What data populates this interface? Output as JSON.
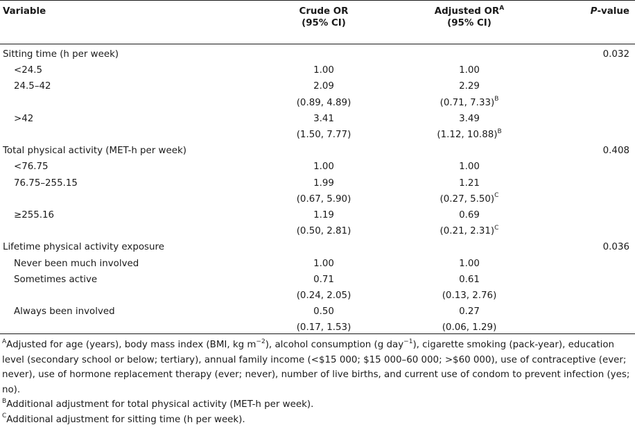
{
  "header": {
    "variable": "Variable",
    "crude_line1": "Crude OR",
    "crude_line2": "(95% CI)",
    "adjusted_line1": "Adjusted OR",
    "adjusted_sup": "A",
    "adjusted_line2": "(95% CI)",
    "pvalue_italic": "P",
    "pvalue_rest": "-value"
  },
  "rows": [
    {
      "label": "Sitting time (h per week)",
      "indent": false,
      "crude": "",
      "adjusted": "",
      "adj_sup": "",
      "p": "0.032"
    },
    {
      "label": "<24.5",
      "indent": true,
      "crude": "1.00",
      "adjusted": "1.00",
      "adj_sup": "",
      "p": ""
    },
    {
      "label": "24.5–42",
      "indent": true,
      "crude": "2.09",
      "adjusted": "2.29",
      "adj_sup": "",
      "p": ""
    },
    {
      "label": "",
      "indent": true,
      "crude": "(0.89, 4.89)",
      "adjusted": "(0.71, 7.33)",
      "adj_sup": "B",
      "p": ""
    },
    {
      "label": ">42",
      "indent": true,
      "crude": "3.41",
      "adjusted": "3.49",
      "adj_sup": "",
      "p": ""
    },
    {
      "label": "",
      "indent": true,
      "crude": "(1.50, 7.77)",
      "adjusted": "(1.12, 10.88)",
      "adj_sup": "B",
      "p": ""
    },
    {
      "label": "Total physical activity (MET-h per week)",
      "indent": false,
      "crude": "",
      "adjusted": "",
      "adj_sup": "",
      "p": "0.408"
    },
    {
      "label": "<76.75",
      "indent": true,
      "crude": "1.00",
      "adjusted": "1.00",
      "adj_sup": "",
      "p": ""
    },
    {
      "label": "76.75–255.15",
      "indent": true,
      "crude": "1.99",
      "adjusted": "1.21",
      "adj_sup": "",
      "p": ""
    },
    {
      "label": "",
      "indent": true,
      "crude": "(0.67, 5.90)",
      "adjusted": "(0.27, 5.50)",
      "adj_sup": "C",
      "p": ""
    },
    {
      "label": "≥255.16",
      "indent": true,
      "crude": "1.19",
      "adjusted": "0.69",
      "adj_sup": "",
      "p": ""
    },
    {
      "label": "",
      "indent": true,
      "crude": "(0.50, 2.81)",
      "adjusted": "(0.21, 2.31)",
      "adj_sup": "C",
      "p": ""
    },
    {
      "label": "Lifetime physical activity exposure",
      "indent": false,
      "crude": "",
      "adjusted": "",
      "adj_sup": "",
      "p": "0.036"
    },
    {
      "label": "Never been much involved",
      "indent": true,
      "crude": "1.00",
      "adjusted": "1.00",
      "adj_sup": "",
      "p": ""
    },
    {
      "label": "Sometimes active",
      "indent": true,
      "crude": "0.71",
      "adjusted": "0.61",
      "adj_sup": "",
      "p": ""
    },
    {
      "label": "",
      "indent": true,
      "crude": "(0.24, 2.05)",
      "adjusted": "(0.13, 2.76)",
      "adj_sup": "",
      "p": ""
    },
    {
      "label": "Always been involved",
      "indent": true,
      "crude": "0.50",
      "adjusted": "0.27",
      "adj_sup": "",
      "p": ""
    },
    {
      "label": "",
      "indent": true,
      "crude": "(0.17, 1.53)",
      "adjusted": "(0.06, 1.29)",
      "adj_sup": "",
      "p": ""
    }
  ],
  "footnotes": {
    "a_mark": "A",
    "a_pre": "Adjusted for age (years), body mass index (BMI, kg m",
    "a_sup1": "−2",
    "a_mid": "), alcohol consumption (g day",
    "a_sup2": "−1",
    "a_post": "), cigarette smoking (pack-year), education level (secondary school or below; tertiary), annual family income (<$15 000; $15 000–60 000; >$60 000), use of contraceptive (ever; never), use of hormone replacement therapy (ever; never), number of live births, and current use of condom to prevent infection (yes; no).",
    "b_mark": "B",
    "b_text": "Additional adjustment for total physical activity (MET-h per week).",
    "c_mark": "C",
    "c_text": "Additional adjustment for sitting time (h per week)."
  }
}
